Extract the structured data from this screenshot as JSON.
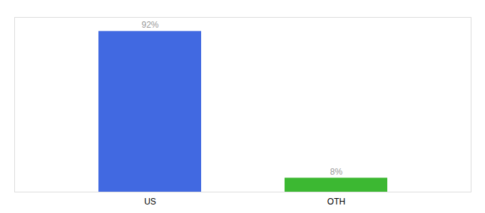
{
  "chart_data": {
    "type": "bar",
    "categories": [
      "US",
      "OTH"
    ],
    "values": [
      92,
      8
    ],
    "colors": [
      "#4169e1",
      "#3cb832"
    ],
    "value_labels": [
      "92%",
      "8%"
    ],
    "data_labels": true,
    "ylim": [
      0,
      100
    ],
    "tick_labels": "x",
    "grid": false
  }
}
